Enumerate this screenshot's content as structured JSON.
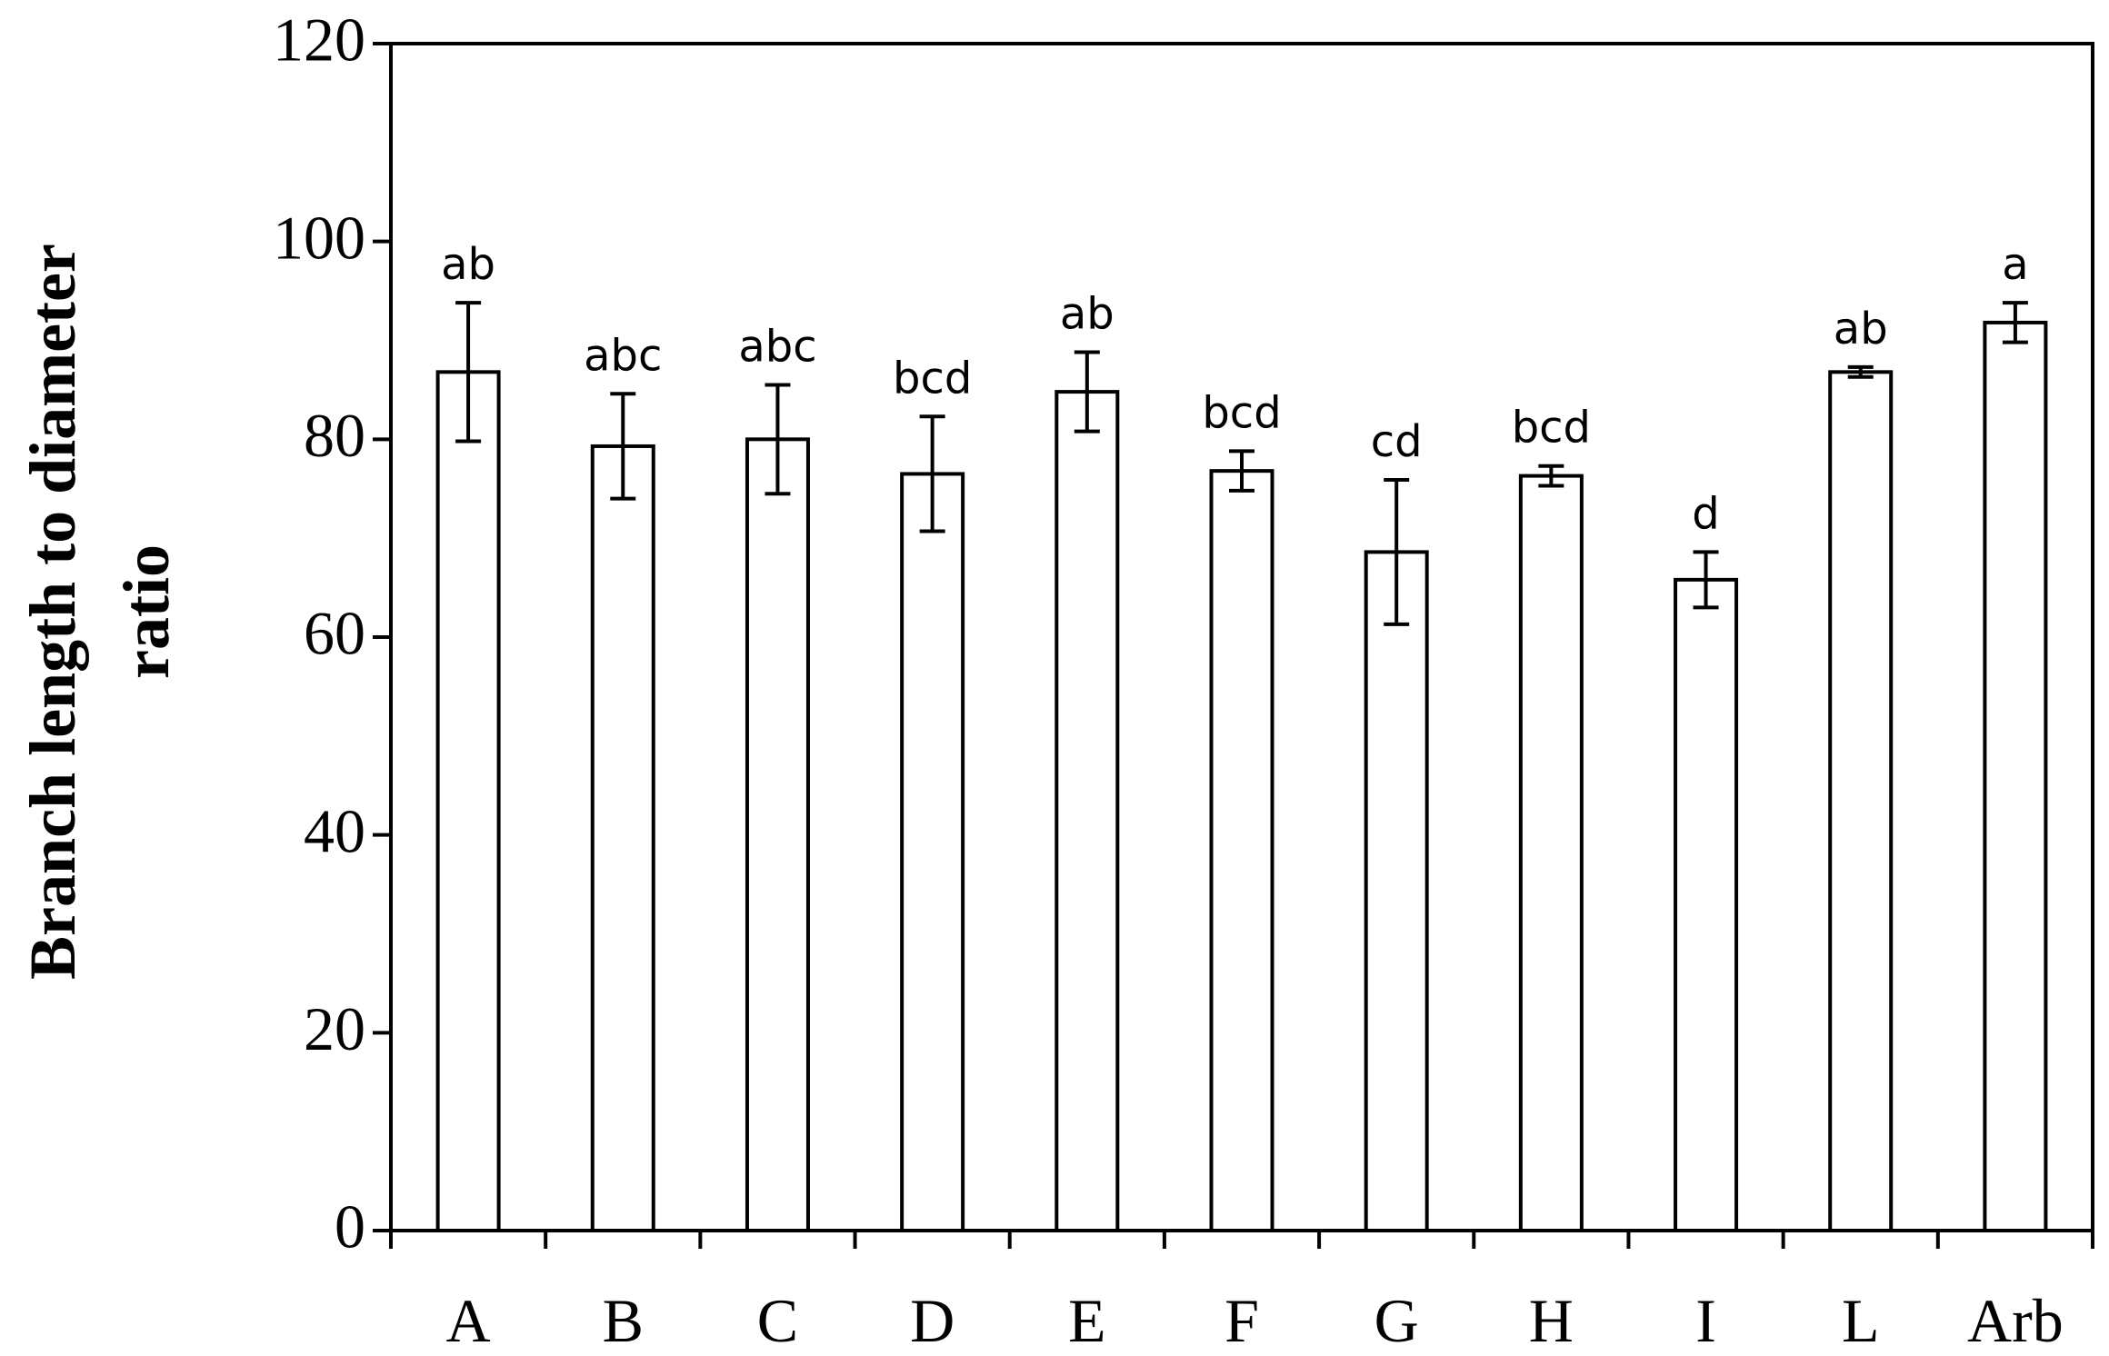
{
  "chart_data": {
    "type": "bar",
    "title": "",
    "xlabel": "",
    "ylabel": [
      "Branch length to diameter",
      "ratio"
    ],
    "ylim": [
      0,
      120
    ],
    "yticks": [
      0,
      20,
      40,
      60,
      80,
      100,
      120
    ],
    "categories": [
      "A",
      "B",
      "C",
      "D",
      "E",
      "F",
      "G",
      "H",
      "I",
      "L",
      "Arb"
    ],
    "values": [
      86.8,
      79.3,
      80.0,
      76.5,
      84.8,
      76.8,
      68.6,
      76.3,
      65.8,
      86.8,
      91.8
    ],
    "errors": [
      7.0,
      5.3,
      5.5,
      5.8,
      4.0,
      2.0,
      7.3,
      1.0,
      2.8,
      0.5,
      2.0
    ],
    "significance_labels": [
      "ab",
      "abc",
      "abc",
      "bcd",
      "ab",
      "bcd",
      "cd",
      "bcd",
      "d",
      "ab",
      "a"
    ],
    "grid": false,
    "legend": "none",
    "colors": {
      "bar_fill": "#ffffff",
      "bar_stroke": "#000000"
    }
  }
}
